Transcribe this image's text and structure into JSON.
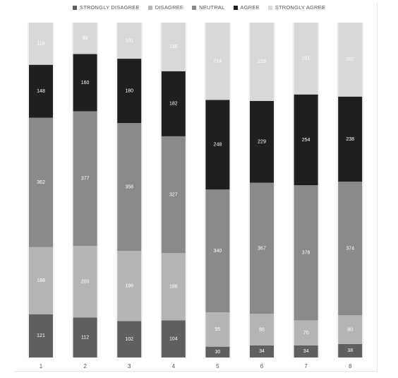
{
  "chart_data": {
    "type": "bar",
    "stacked": true,
    "categories": [
      "1",
      "2",
      "3",
      "4",
      "5",
      "6",
      "7",
      "8"
    ],
    "series": [
      {
        "name": "STRONGLY DISAGREE",
        "color": "#5f5f5f",
        "values": [
          121,
          112,
          102,
          104,
          30,
          34,
          34,
          38
        ]
      },
      {
        "name": "DISAGREE",
        "color": "#b5b5b5",
        "values": [
          188,
          200,
          196,
          188,
          95,
          88,
          70,
          80
        ]
      },
      {
        "name": "NEUTRAL",
        "color": "#8a8a8a",
        "values": [
          362,
          377,
          358,
          327,
          340,
          367,
          378,
          374
        ]
      },
      {
        "name": "AGREE",
        "color": "#1f1f1f",
        "values": [
          148,
          160,
          180,
          182,
          248,
          229,
          254,
          238
        ]
      },
      {
        "name": "STRONGLY AGREE",
        "color": "#d9d9d9",
        "values": [
          118,
          88,
          101,
          136,
          214,
          219,
          201,
          207
        ]
      }
    ],
    "background_bar_color": "#f2f2f2",
    "title": "",
    "xlabel": "",
    "ylabel": "",
    "legend_position": "top"
  }
}
